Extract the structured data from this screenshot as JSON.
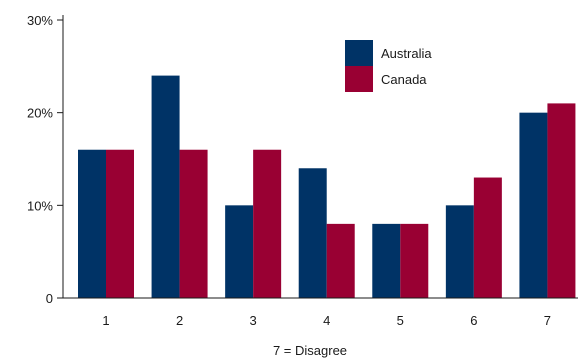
{
  "chart_data": {
    "type": "bar",
    "categories": [
      "1",
      "2",
      "3",
      "4",
      "5",
      "6",
      "7"
    ],
    "series": [
      {
        "name": "Australia",
        "values": [
          16,
          24,
          10,
          14,
          8,
          10,
          20
        ],
        "color": "#003366"
      },
      {
        "name": "Canada",
        "values": [
          16,
          16,
          16,
          8,
          8,
          13,
          21
        ],
        "color": "#990033"
      }
    ],
    "y_ticks": [
      {
        "value": 0,
        "label": "0"
      },
      {
        "value": 10,
        "label": "10%"
      },
      {
        "value": 20,
        "label": "20%"
      },
      {
        "value": 30,
        "label": "30%"
      }
    ],
    "xlabel": "7 = Disagree",
    "ylabel": "",
    "ylim": [
      0,
      30
    ],
    "grid": false,
    "legend_position": "top-center"
  }
}
